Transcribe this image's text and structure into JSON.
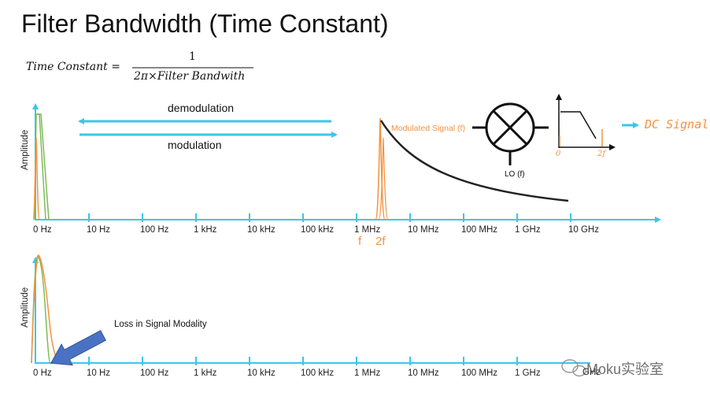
{
  "title": "Filter Bandwidth (Time Constant)",
  "formula": {
    "lhs": "Time Constant =",
    "numerator": "1",
    "denominator": "2π×Filter Bandwith"
  },
  "arrows": {
    "demodulation": "demodulation",
    "modulation": "modulation"
  },
  "y_axis_label": "Amplitude",
  "x_ticks": [
    "0 Hz",
    "10 Hz",
    "100 Hz",
    "1 kHz",
    "10 kHz",
    "100 kHz",
    "1 MHz",
    "10 MHz",
    "100 MHz",
    "1 GHz",
    "10 GHz"
  ],
  "bottom_last_tick_partial": "GHz",
  "freq_markers": {
    "f": "f",
    "two_f": "2f"
  },
  "mixer": {
    "modulated_signal": "Modulated Signal (f)",
    "lo": "LO (f)",
    "filter_axis_zero": "0",
    "filter_axis_2f": "2f",
    "output": "DC Signal!"
  },
  "annotation": "Loss in Signal Modality",
  "watermark": "Moku实验室",
  "colors": {
    "axis": "#3cc6e8",
    "orange": "#f5923e",
    "green": "#7dbb59",
    "blue_arrow": "#4a72c4",
    "decay": "#222222"
  }
}
